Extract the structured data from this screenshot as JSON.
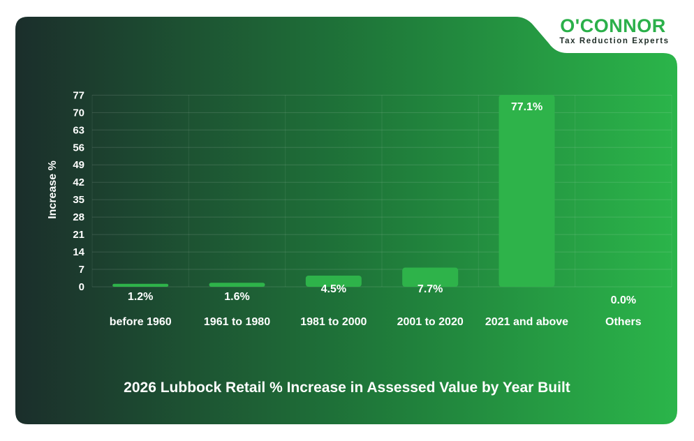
{
  "brand": {
    "name": "O'CONNOR",
    "tagline": "Tax Reduction Experts"
  },
  "colors": {
    "bar": "#2eb34a",
    "gradient_start": "#1b2e2b",
    "gradient_end": "#2bb54a",
    "brand_green": "#2bb04a"
  },
  "chart_data": {
    "type": "bar",
    "title": "2026 Lubbock Retail % Increase in Assessed Value by Year Built",
    "xlabel": "",
    "ylabel": "Increase %",
    "categories": [
      "before 1960",
      "1961 to 1980",
      "1981 to 2000",
      "2001 to 2020",
      "2021 and above",
      "Others"
    ],
    "values": [
      1.2,
      1.6,
      4.5,
      7.7,
      77.1,
      0.0
    ],
    "value_labels": [
      "1.2%",
      "1.6%",
      "4.5%",
      "7.7%",
      "77.1%",
      "0.0%"
    ],
    "yticks": [
      0,
      7,
      14,
      21,
      28,
      35,
      42,
      49,
      56,
      63,
      70,
      77
    ],
    "ylim": [
      0,
      77.1
    ],
    "grid": true
  }
}
